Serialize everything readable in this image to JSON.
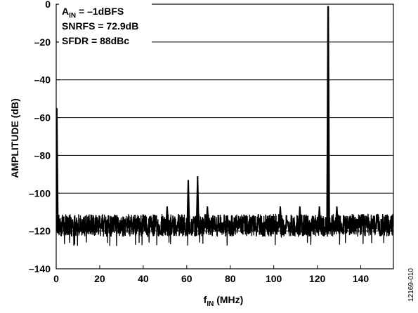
{
  "chart_data": {
    "type": "line",
    "title": "",
    "xlabel": {
      "main": "f",
      "sub": "IN",
      "rest": " (MHz)"
    },
    "ylabel": "AMPLITUDE (dB)",
    "xlim": [
      0,
      155
    ],
    "ylim": [
      -140,
      0
    ],
    "xticks": [
      0,
      20,
      40,
      60,
      80,
      100,
      120,
      140
    ],
    "xtick_labels": [
      "0",
      "20",
      "40",
      "60",
      "80",
      "100",
      "120",
      "140"
    ],
    "yticks": [
      0,
      -20,
      -40,
      -60,
      -80,
      -100,
      -120,
      -140
    ],
    "ytick_labels": [
      "0",
      "–20",
      "–40",
      "–60",
      "–80",
      "–100",
      "–120",
      "–140"
    ],
    "grid": "horizontal",
    "annotations": [
      {
        "main": "A",
        "sub": "IN",
        "rest": " = –1dBFS"
      },
      {
        "main": "SNRFS = 72.9dB",
        "sub": "",
        "rest": ""
      },
      {
        "main": "SFDR = 88dBc",
        "sub": "",
        "rest": ""
      }
    ],
    "noise_floor": {
      "level": -117,
      "range": [
        -126,
        -110
      ]
    },
    "spurs": [
      {
        "x": 0.3,
        "y": -55
      },
      {
        "x": 51.0,
        "y": -107
      },
      {
        "x": 60.7,
        "y": -93
      },
      {
        "x": 65.0,
        "y": -91
      },
      {
        "x": 69.5,
        "y": -107
      },
      {
        "x": 103.0,
        "y": -107
      },
      {
        "x": 112.0,
        "y": -107
      },
      {
        "x": 121.0,
        "y": -107
      },
      {
        "x": 125.0,
        "y": -1
      },
      {
        "x": 129.0,
        "y": -107
      }
    ],
    "figure_id": "12169-010"
  }
}
